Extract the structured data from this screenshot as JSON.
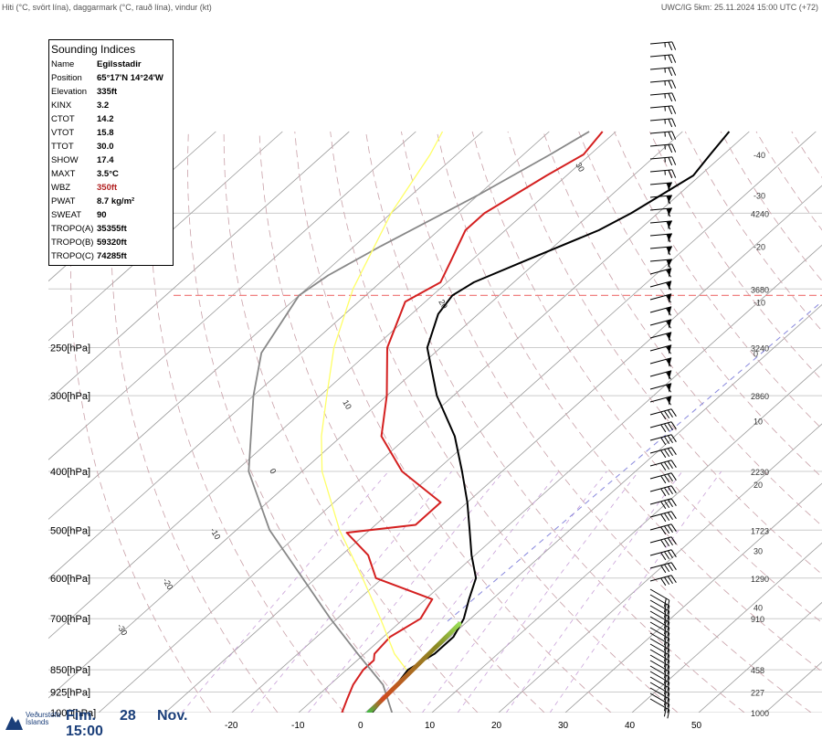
{
  "header": {
    "left": "Hiti (°C, svört lína), daggarmark (°C, rauð lína), vindur (kt)",
    "right": "UWC/IG 5km: 25.11.2024 15:00 UTC (+72)"
  },
  "indices": {
    "title": "Sounding Indices",
    "rows": [
      {
        "key": "Name",
        "value": "Egilsstadir"
      },
      {
        "key": "Position",
        "value": "65°17'N 14°24'W"
      },
      {
        "key": "Elevation",
        "value": "335ft"
      },
      {
        "key": "KINX",
        "value": "3.2"
      },
      {
        "key": "CTOT",
        "value": "14.2"
      },
      {
        "key": "VTOT",
        "value": "15.8"
      },
      {
        "key": "TTOT",
        "value": "30.0"
      },
      {
        "key": "SHOW",
        "value": "17.4"
      },
      {
        "key": "MAXT",
        "value": "3.5°C"
      },
      {
        "key": "WBZ",
        "value": "350ft",
        "color": "#b22222"
      },
      {
        "key": "PWAT",
        "value": "8.7 kg/m²"
      },
      {
        "key": "SWEAT",
        "value": "90"
      },
      {
        "key": "TROPO(A)",
        "value": "35355ft"
      },
      {
        "key": "TROPO(B)",
        "value": "59320ft"
      },
      {
        "key": "TROPO(C)",
        "value": "74285ft"
      }
    ]
  },
  "logo": {
    "line1": "Veðurstofa",
    "line2": "Íslands"
  },
  "footer": {
    "day": "Fim.",
    "date": "28",
    "month": "Nov.",
    "time": "15:00"
  },
  "colors": {
    "temperature": "#000000",
    "dewpoint": "#d42020",
    "parcel": "#888888",
    "moist_adiabat": "#ffff66",
    "tropopause": "#f08080"
  },
  "chart_data": {
    "type": "line",
    "xlabel": "",
    "ylabel": "",
    "pressure_levels": [
      {
        "p": 1000,
        "label": "1000[hPa]"
      },
      {
        "p": 925,
        "label": "925[hPa]"
      },
      {
        "p": 850,
        "label": "850[hPa]"
      },
      {
        "p": 700,
        "label": "700[hPa]"
      },
      {
        "p": 600,
        "label": "600[hPa]"
      },
      {
        "p": 500,
        "label": "500[hPa]"
      },
      {
        "p": 400,
        "label": "400[hPa]"
      },
      {
        "p": 300,
        "label": "300[hPa]"
      },
      {
        "p": 250,
        "label": "250[hPa]"
      }
    ],
    "x_tick_labels": [
      "-20",
      "-10",
      "0",
      "10",
      "20",
      "30",
      "40",
      "50"
    ],
    "right_height_labels": [
      {
        "p": 1000,
        "text": "1000"
      },
      {
        "p": 925,
        "text": "227"
      },
      {
        "p": 850,
        "text": "458"
      },
      {
        "p": 700,
        "text": "910"
      },
      {
        "p": 600,
        "text": "1290"
      },
      {
        "p": 500,
        "text": "1723"
      },
      {
        "p": 400,
        "text": "2230"
      },
      {
        "p": 300,
        "text": "2860"
      },
      {
        "p": 250,
        "text": "3240"
      },
      {
        "p": 200,
        "text": "3680"
      },
      {
        "p": 150,
        "text": "4240"
      }
    ],
    "right_temp_labels": [
      {
        "p": 120,
        "text": "-40"
      },
      {
        "p": 140,
        "text": "-30"
      },
      {
        "p": 170,
        "text": "-20"
      },
      {
        "p": 210,
        "text": "-10"
      },
      {
        "p": 255,
        "text": "0"
      },
      {
        "p": 330,
        "text": "10"
      },
      {
        "p": 420,
        "text": "20"
      },
      {
        "p": 540,
        "text": "30"
      },
      {
        "p": 670,
        "text": "40"
      }
    ],
    "isotherm_labels": [
      "30",
      "20",
      "10",
      "0",
      "-10",
      "-20",
      "-30"
    ],
    "tropopause_p": 205,
    "series": [
      {
        "key": "temperature",
        "points": [
          [
            1000,
            1.0
          ],
          [
            950,
            0.5
          ],
          [
            900,
            0.0
          ],
          [
            850,
            -0.8
          ],
          [
            800,
            0.5
          ],
          [
            750,
            0.5
          ],
          [
            700,
            -1.0
          ],
          [
            650,
            -3.5
          ],
          [
            600,
            -6.0
          ],
          [
            550,
            -10.5
          ],
          [
            500,
            -15.0
          ],
          [
            450,
            -20.0
          ],
          [
            400,
            -26.0
          ],
          [
            350,
            -33.0
          ],
          [
            300,
            -42.5
          ],
          [
            250,
            -52.0
          ],
          [
            220,
            -56.0
          ],
          [
            205,
            -57.0
          ],
          [
            195,
            -56.0
          ],
          [
            180,
            -52.0
          ],
          [
            160,
            -46.0
          ],
          [
            150,
            -44.0
          ],
          [
            130,
            -41.0
          ],
          [
            120,
            -42.0
          ],
          [
            110,
            -43.0
          ]
        ]
      },
      {
        "key": "dewpoint",
        "points": [
          [
            1000,
            -3.5
          ],
          [
            950,
            -5.0
          ],
          [
            900,
            -6.5
          ],
          [
            850,
            -7.5
          ],
          [
            820,
            -7.5
          ],
          [
            800,
            -8.5
          ],
          [
            750,
            -9.0
          ],
          [
            700,
            -7.5
          ],
          [
            650,
            -9.0
          ],
          [
            600,
            -21.0
          ],
          [
            550,
            -26.0
          ],
          [
            505,
            -33.0
          ],
          [
            490,
            -24.0
          ],
          [
            450,
            -24.0
          ],
          [
            400,
            -35.0
          ],
          [
            350,
            -44.0
          ],
          [
            300,
            -50.0
          ],
          [
            250,
            -58.0
          ],
          [
            210,
            -63.0
          ],
          [
            195,
            -61.0
          ],
          [
            180,
            -63.0
          ],
          [
            160,
            -66.0
          ],
          [
            150,
            -66.0
          ],
          [
            130,
            -63.0
          ],
          [
            120,
            -61.0
          ],
          [
            110,
            -62.0
          ]
        ]
      },
      {
        "key": "parcel",
        "points": [
          [
            1000,
            4.0
          ],
          [
            900,
            -2.0
          ],
          [
            800,
            -11.0
          ],
          [
            700,
            -21.0
          ],
          [
            600,
            -32.0
          ],
          [
            500,
            -45.0
          ],
          [
            400,
            -58.0
          ],
          [
            300,
            -70.0
          ],
          [
            255,
            -76.0
          ],
          [
            205,
            -80.0
          ],
          [
            190,
            -79.0
          ],
          [
            170,
            -76.0
          ],
          [
            140,
            -70.0
          ],
          [
            120,
            -66.0
          ],
          [
            110,
            -64.0
          ]
        ]
      },
      {
        "key": "moist_adiabat",
        "points": [
          [
            850,
            -1.0
          ],
          [
            800,
            -5.5
          ],
          [
            700,
            -13.5
          ],
          [
            600,
            -23.0
          ],
          [
            500,
            -34.5
          ],
          [
            400,
            -47.0
          ],
          [
            350,
            -53.0
          ],
          [
            300,
            -59.0
          ],
          [
            250,
            -66.0
          ],
          [
            200,
            -73.0
          ],
          [
            150,
            -80.0
          ],
          [
            120,
            -84.0
          ],
          [
            110,
            -86.0
          ]
        ]
      }
    ]
  }
}
